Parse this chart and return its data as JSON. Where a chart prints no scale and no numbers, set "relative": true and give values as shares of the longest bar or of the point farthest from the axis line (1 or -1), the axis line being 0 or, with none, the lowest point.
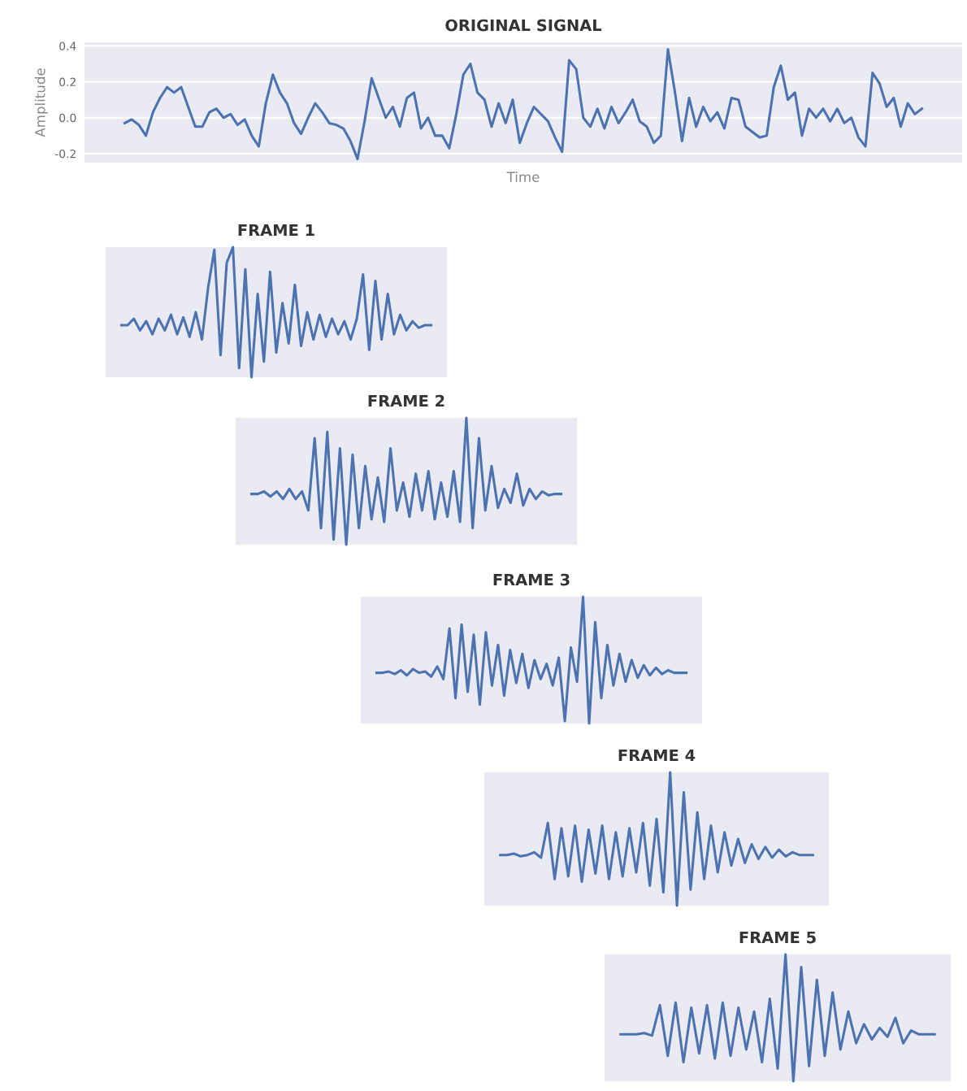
{
  "chart_data": [
    {
      "type": "line",
      "title": "ORIGINAL SIGNAL",
      "xlabel": "Time",
      "ylabel": "Amplitude",
      "categories": [
        null,
        null,
        null,
        null,
        null,
        null,
        null,
        null,
        null,
        null,
        null,
        null,
        null,
        null,
        null,
        null,
        null,
        null,
        null,
        null,
        null,
        null,
        null,
        null,
        null,
        null,
        null,
        null,
        null,
        null,
        null,
        null,
        null,
        null,
        null,
        null,
        null,
        null,
        null,
        null,
        null,
        null,
        null,
        null,
        null,
        null,
        null,
        null,
        null,
        null,
        null,
        null,
        null,
        null,
        null,
        null,
        null,
        null,
        null,
        null,
        null,
        null,
        null,
        null,
        null,
        null,
        null,
        null,
        null,
        null,
        null,
        null,
        null,
        null,
        null,
        null,
        null,
        null,
        null,
        null,
        null,
        null,
        null,
        null,
        null,
        null,
        null,
        null,
        null,
        null,
        null,
        null,
        null,
        null,
        null,
        null,
        null,
        null,
        null,
        null,
        null,
        null,
        null,
        null,
        null,
        null,
        null,
        null,
        null,
        null,
        null,
        null,
        null,
        null
      ],
      "series": [
        {
          "color": "#4c72b0",
          "values": [
            -0.03,
            -0.01,
            -0.04,
            -0.1,
            0.03,
            0.11,
            0.17,
            0.14,
            0.17,
            0.06,
            -0.05,
            -0.05,
            0.03,
            0.05,
            0.0,
            0.02,
            -0.04,
            -0.01,
            -0.1,
            -0.16,
            0.08,
            0.24,
            0.14,
            0.08,
            -0.03,
            -0.09,
            0.0,
            0.08,
            0.03,
            -0.03,
            -0.04,
            -0.06,
            -0.13,
            -0.23,
            -0.02,
            0.22,
            0.11,
            0.0,
            0.06,
            -0.05,
            0.11,
            0.14,
            -0.06,
            0.0,
            -0.1,
            -0.1,
            -0.17,
            0.02,
            0.24,
            0.3,
            0.14,
            0.1,
            -0.05,
            0.08,
            -0.03,
            0.1,
            -0.14,
            -0.03,
            0.06,
            0.02,
            -0.02,
            -0.11,
            -0.19,
            0.32,
            0.27,
            0.0,
            -0.05,
            0.05,
            -0.06,
            0.06,
            -0.03,
            0.03,
            0.1,
            -0.02,
            -0.05,
            -0.14,
            -0.1,
            0.38,
            0.14,
            -0.13,
            0.11,
            -0.05,
            0.06,
            -0.02,
            0.03,
            -0.06,
            0.11,
            0.1,
            -0.05,
            -0.08,
            -0.11,
            -0.1,
            0.17,
            0.29,
            0.1,
            0.14,
            -0.1,
            0.05,
            0.0,
            0.05,
            -0.02,
            0.05,
            -0.03,
            0.0,
            -0.11,
            -0.16,
            0.25,
            0.19,
            0.06,
            0.11,
            -0.05,
            0.08,
            0.02,
            0.05
          ]
        }
      ],
      "ylim": [
        -0.25,
        0.42
      ],
      "yticks": [
        {
          "value": -0.2,
          "label": "-0.2"
        },
        {
          "value": 0.0,
          "label": "0.0"
        },
        {
          "value": 0.2,
          "label": "0.2"
        },
        {
          "value": 0.4,
          "label": "0.4"
        }
      ],
      "grid": "y",
      "tick_labels": "y",
      "legend": false
    },
    {
      "type": "line",
      "title": "FRAME 1",
      "relative": true,
      "tick_labels": false,
      "categories": [
        null,
        null,
        null,
        null,
        null,
        null,
        null,
        null,
        null,
        null,
        null,
        null,
        null,
        null,
        null,
        null,
        null,
        null,
        null,
        null,
        null,
        null,
        null,
        null,
        null,
        null,
        null,
        null,
        null,
        null,
        null,
        null,
        null,
        null,
        null,
        null,
        null,
        null,
        null,
        null,
        null,
        null,
        null,
        null,
        null,
        null,
        null,
        null,
        null,
        null,
        null
      ],
      "series": [
        {
          "color": "#4c72b0",
          "values": [
            0.4,
            0.4,
            0.45,
            0.36,
            0.43,
            0.33,
            0.45,
            0.36,
            0.48,
            0.33,
            0.46,
            0.31,
            0.5,
            0.29,
            0.69,
            0.98,
            0.17,
            0.88,
            1,
            0.07,
            0.83,
            0,
            0.64,
            0.12,
            0.81,
            0.19,
            0.57,
            0.26,
            0.71,
            0.24,
            0.5,
            0.29,
            0.48,
            0.31,
            0.45,
            0.33,
            0.43,
            0.29,
            0.45,
            0.79,
            0.21,
            0.74,
            0.29,
            0.64,
            0.33,
            0.48,
            0.36,
            0.43,
            0.38,
            0.4,
            0.4
          ]
        }
      ]
    },
    {
      "type": "line",
      "title": "FRAME 2",
      "relative": true,
      "tick_labels": false,
      "categories": [
        null,
        null,
        null,
        null,
        null,
        null,
        null,
        null,
        null,
        null,
        null,
        null,
        null,
        null,
        null,
        null,
        null,
        null,
        null,
        null,
        null,
        null,
        null,
        null,
        null,
        null,
        null,
        null,
        null,
        null,
        null,
        null,
        null,
        null,
        null,
        null,
        null,
        null,
        null,
        null,
        null,
        null,
        null,
        null,
        null,
        null,
        null,
        null,
        null,
        null
      ],
      "series": [
        {
          "color": "#4c72b0",
          "values": [
            0.4,
            0.4,
            0.42,
            0.38,
            0.42,
            0.36,
            0.44,
            0.36,
            0.42,
            0.27,
            0.84,
            0.13,
            0.89,
            0.04,
            0.76,
            0,
            0.71,
            0.13,
            0.62,
            0.2,
            0.53,
            0.18,
            0.76,
            0.27,
            0.49,
            0.22,
            0.56,
            0.27,
            0.58,
            0.2,
            0.49,
            0.22,
            0.58,
            0.18,
            1,
            0.13,
            0.84,
            0.27,
            0.62,
            0.29,
            0.44,
            0.33,
            0.56,
            0.31,
            0.44,
            0.36,
            0.42,
            0.39,
            0.4,
            0.4
          ]
        }
      ]
    },
    {
      "type": "line",
      "title": "FRAME 3",
      "relative": true,
      "tick_labels": false,
      "categories": [
        null,
        null,
        null,
        null,
        null,
        null,
        null,
        null,
        null,
        null,
        null,
        null,
        null,
        null,
        null,
        null,
        null,
        null,
        null,
        null,
        null,
        null,
        null,
        null,
        null,
        null,
        null,
        null,
        null,
        null,
        null,
        null,
        null,
        null,
        null,
        null,
        null,
        null,
        null,
        null,
        null,
        null,
        null,
        null,
        null,
        null,
        null,
        null,
        null,
        null,
        null,
        null
      ],
      "series": [
        {
          "color": "#4c72b0",
          "values": [
            0.4,
            0.4,
            0.41,
            0.39,
            0.42,
            0.38,
            0.43,
            0.4,
            0.41,
            0.37,
            0.45,
            0.35,
            0.75,
            0.2,
            0.78,
            0.25,
            0.7,
            0.15,
            0.72,
            0.3,
            0.62,
            0.22,
            0.58,
            0.32,
            0.55,
            0.28,
            0.5,
            0.35,
            0.47,
            0.3,
            0.52,
            0.02,
            0.6,
            0.33,
            1,
            0,
            0.8,
            0.2,
            0.62,
            0.3,
            0.55,
            0.33,
            0.5,
            0.36,
            0.46,
            0.38,
            0.44,
            0.39,
            0.42,
            0.4,
            0.4,
            0.4
          ]
        }
      ]
    },
    {
      "type": "line",
      "title": "FRAME 4",
      "relative": true,
      "tick_labels": false,
      "categories": [
        null,
        null,
        null,
        null,
        null,
        null,
        null,
        null,
        null,
        null,
        null,
        null,
        null,
        null,
        null,
        null,
        null,
        null,
        null,
        null,
        null,
        null,
        null,
        null,
        null,
        null,
        null,
        null,
        null,
        null,
        null,
        null,
        null,
        null,
        null,
        null,
        null,
        null,
        null,
        null,
        null,
        null,
        null,
        null,
        null,
        null,
        null
      ],
      "series": [
        {
          "color": "#4c72b0",
          "values": [
            0.38,
            0.38,
            0.39,
            0.37,
            0.38,
            0.4,
            0.36,
            0.62,
            0.2,
            0.58,
            0.22,
            0.6,
            0.18,
            0.57,
            0.24,
            0.6,
            0.2,
            0.55,
            0.22,
            0.58,
            0.25,
            0.62,
            0.15,
            0.65,
            0.1,
            1,
            0,
            0.85,
            0.12,
            0.7,
            0.2,
            0.6,
            0.25,
            0.55,
            0.3,
            0.5,
            0.32,
            0.46,
            0.35,
            0.44,
            0.36,
            0.42,
            0.37,
            0.4,
            0.38,
            0.38,
            0.38
          ]
        }
      ]
    },
    {
      "type": "line",
      "title": "FRAME 5",
      "relative": true,
      "tick_labels": false,
      "categories": [
        null,
        null,
        null,
        null,
        null,
        null,
        null,
        null,
        null,
        null,
        null,
        null,
        null,
        null,
        null,
        null,
        null,
        null,
        null,
        null,
        null,
        null,
        null,
        null,
        null,
        null,
        null,
        null,
        null,
        null,
        null,
        null,
        null,
        null,
        null,
        null,
        null,
        null,
        null,
        null,
        null
      ],
      "series": [
        {
          "color": "#4c72b0",
          "values": [
            0.37,
            0.37,
            0.37,
            0.38,
            0.36,
            0.6,
            0.2,
            0.62,
            0.15,
            0.58,
            0.22,
            0.6,
            0.18,
            0.62,
            0.2,
            0.58,
            0.25,
            0.55,
            0.15,
            0.65,
            0.1,
            1,
            0,
            0.9,
            0.12,
            0.8,
            0.2,
            0.7,
            0.25,
            0.55,
            0.3,
            0.45,
            0.33,
            0.42,
            0.35,
            0.5,
            0.3,
            0.4,
            0.37,
            0.37,
            0.37
          ]
        }
      ]
    }
  ]
}
